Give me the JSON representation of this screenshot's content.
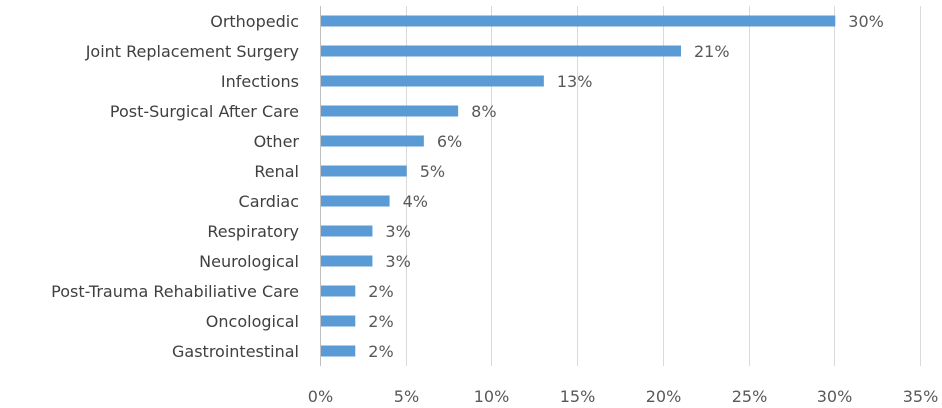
{
  "colors": {
    "bar": "#5b9bd5",
    "grid": "#d9d9d9"
  },
  "chart_data": {
    "type": "bar",
    "orientation": "horizontal",
    "title": "",
    "xlabel": "",
    "ylabel": "",
    "categories": [
      "Orthopedic",
      "Joint Replacement Surgery",
      "Infections",
      "Post-Surgical After Care",
      "Other",
      "Renal",
      "Cardiac",
      "Respiratory",
      "Neurological",
      "Post-Trauma Rehabiliative Care",
      "Oncological",
      "Gastrointestinal"
    ],
    "values": [
      30,
      21,
      13,
      8,
      6,
      5,
      4,
      3,
      3,
      2,
      2,
      2
    ],
    "value_labels": [
      "30%",
      "21%",
      "13%",
      "8%",
      "6%",
      "5%",
      "4%",
      "3%",
      "3%",
      "2%",
      "2%",
      "2%"
    ],
    "xlim": [
      0,
      35
    ],
    "x_ticks": [
      0,
      5,
      10,
      15,
      20,
      25,
      30,
      35
    ],
    "x_tick_labels": [
      "0%",
      "5%",
      "10%",
      "15%",
      "20%",
      "25%",
      "30%",
      "35%"
    ],
    "grid": true,
    "legend": "none"
  }
}
